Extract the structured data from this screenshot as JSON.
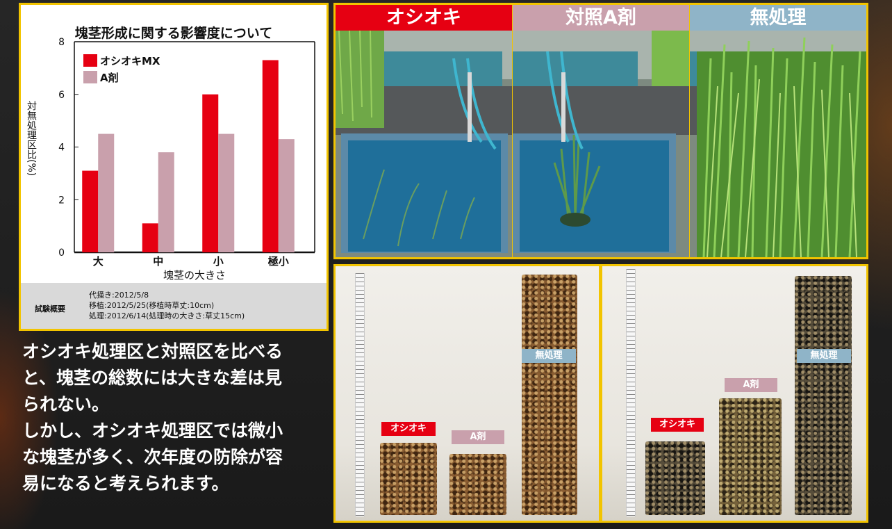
{
  "chart_data": {
    "type": "bar",
    "title": "塊茎形成に関する影響度について",
    "xlabel": "塊茎の大きさ",
    "ylabel": "対無処理区比(%)",
    "categories": [
      "大",
      "中",
      "小",
      "極小"
    ],
    "ylim": [
      0,
      8
    ],
    "yticks": [
      0,
      2,
      4,
      6,
      8
    ],
    "grid": false,
    "legend_position": "top-left",
    "series": [
      {
        "name": "オシオキMX",
        "color": "#e60012",
        "values": [
          3.1,
          1.1,
          6.0,
          7.3
        ]
      },
      {
        "name": "A剤",
        "color": "#c9a0ac",
        "values": [
          4.5,
          3.8,
          4.5,
          4.3
        ]
      }
    ]
  },
  "summary": {
    "label": "試験概要",
    "lines": [
      "代掻き:2012/5/8",
      "移植:2012/5/25(移植時草丈:10cm)",
      "処理:2012/6/14(処理時の大きさ:草丈15cm)"
    ]
  },
  "body_text": [
    "オシオキ処理区と対照区を比べる",
    "と、塊茎の総数には大きな差は見",
    "られない。",
    "しかし、オシオキ処理区では微小",
    "な塊茎が多く、次年度の防除が容",
    "易になると考えられます。"
  ],
  "photos": {
    "captions": [
      {
        "label": "オシオキ",
        "color": "#e60012"
      },
      {
        "label": "対照A剤",
        "color": "#c9a0ac"
      },
      {
        "label": "無処理",
        "color": "#8fb4c8"
      }
    ]
  },
  "tuber_photos": {
    "left_tags": [
      "オシオキ",
      "A剤",
      "無処理"
    ],
    "right_tags": [
      "オシオキ",
      "A剤",
      "無処理"
    ]
  },
  "colors": {
    "frame": "#f2c400",
    "oshioki_red": "#e60012",
    "a_agent_pink": "#c9a0ac",
    "untreated_blue": "#8fb4c8"
  }
}
